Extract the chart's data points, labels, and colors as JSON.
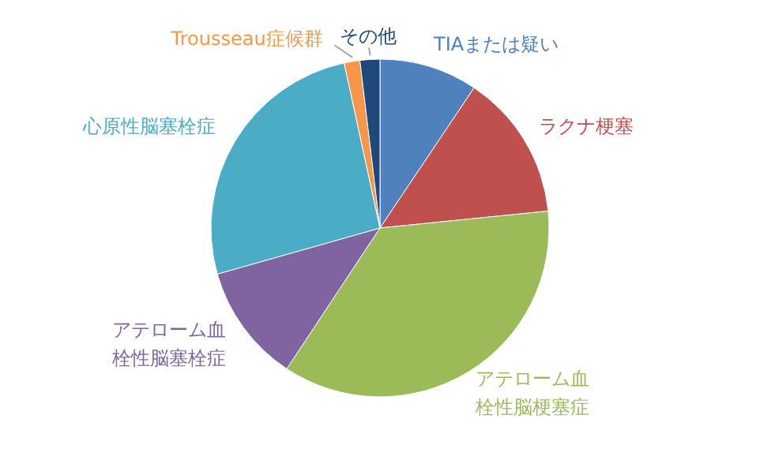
{
  "chart_data": {
    "type": "pie",
    "categories": [
      "TIAまたは疑い",
      "ラクナ梗塞",
      "アテローム血栓性脳梗塞症",
      "アテローム血栓性脳塞栓症",
      "心原性脳塞栓症",
      "Trousseau症候群",
      "その他"
    ],
    "values": [
      9.4,
      14,
      35.9,
      11.3,
      26,
      1.5,
      1.9
    ],
    "colors": [
      "#4f81bd",
      "#c0504d",
      "#9bbb59",
      "#8064a2",
      "#4bacc6",
      "#f79646",
      "#1f497d"
    ]
  }
}
